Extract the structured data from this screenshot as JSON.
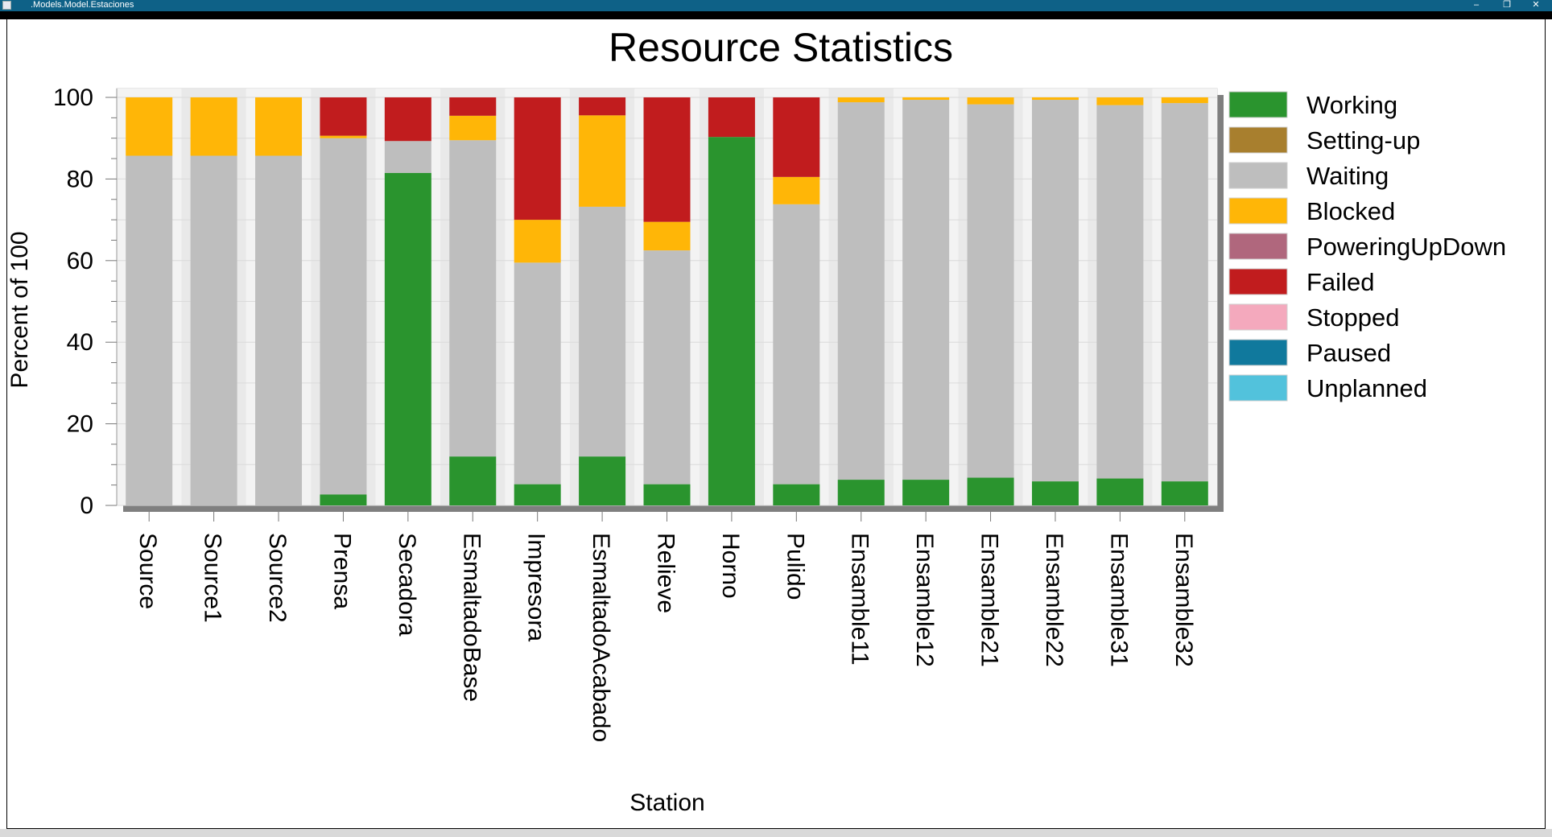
{
  "window": {
    "title": ".Models.Model.Estaciones",
    "minimize_icon": "minimize-icon",
    "restore_icon": "restore-icon",
    "close_icon": "close-icon"
  },
  "chart_data": {
    "type": "stacked-bar",
    "title": "Resource Statistics",
    "xlabel": "Station",
    "ylabel": "Percent of 100",
    "ylim": [
      0,
      100
    ],
    "yticks": [
      0,
      20,
      40,
      60,
      80,
      100
    ],
    "grid": true,
    "legend_position": "right",
    "categories": [
      "Source",
      "Source1",
      "Source2",
      "Prensa",
      "Secadora",
      "EsmaltadoBase",
      "Impresora",
      "EsmaltadoAcabado",
      "Relieve",
      "Horno",
      "Pulido",
      "Ensamble11",
      "Ensamble12",
      "Ensamble21",
      "Ensamble22",
      "Ensamble31",
      "Ensamble32"
    ],
    "series": [
      {
        "name": "Working",
        "color": "#2a942e",
        "values": [
          0,
          0,
          0,
          2.7,
          81.5,
          12,
          5.2,
          12,
          5.2,
          90.3,
          5.2,
          6.3,
          6.3,
          6.8,
          5.9,
          6.6,
          5.9
        ]
      },
      {
        "name": "Setting-up",
        "color": "#a87f2e",
        "values": [
          0,
          0,
          0,
          0,
          0,
          0,
          0,
          0,
          0,
          0,
          0,
          0,
          0,
          0,
          0,
          0,
          0
        ]
      },
      {
        "name": "Waiting",
        "color": "#bebebe",
        "values": [
          85.7,
          85.7,
          85.7,
          87.3,
          7.8,
          77.5,
          54.3,
          61.2,
          57.3,
          0,
          68.6,
          92.5,
          93.1,
          91.5,
          93.5,
          91.5,
          92.7
        ]
      },
      {
        "name": "Blocked",
        "color": "#ffb607",
        "values": [
          14.3,
          14.3,
          14.3,
          0.6,
          0,
          6.0,
          10.5,
          22.4,
          7.0,
          0,
          6.7,
          1.2,
          0.6,
          1.7,
          0.6,
          1.9,
          1.4
        ]
      },
      {
        "name": "PoweringUpDown",
        "color": "#b0677d",
        "values": [
          0,
          0,
          0,
          0,
          0,
          0,
          0,
          0,
          0,
          0,
          0,
          0,
          0,
          0,
          0,
          0,
          0
        ]
      },
      {
        "name": "Failed",
        "color": "#c11c1e",
        "values": [
          0,
          0,
          0,
          9.4,
          10.7,
          4.5,
          30,
          4.4,
          30.5,
          9.7,
          19.5,
          0,
          0,
          0,
          0,
          0,
          0
        ]
      },
      {
        "name": "Stopped",
        "color": "#f4a9bd",
        "values": [
          0,
          0,
          0,
          0,
          0,
          0,
          0,
          0,
          0,
          0,
          0,
          0,
          0,
          0,
          0,
          0,
          0
        ]
      },
      {
        "name": "Paused",
        "color": "#10799d",
        "values": [
          0,
          0,
          0,
          0,
          0,
          0,
          0,
          0,
          0,
          0,
          0,
          0,
          0,
          0,
          0,
          0,
          0
        ]
      },
      {
        "name": "Unplanned",
        "color": "#52c2dc",
        "values": [
          0,
          0,
          0,
          0,
          0,
          0,
          0,
          0,
          0,
          0,
          0,
          0,
          0,
          0,
          0,
          0,
          0
        ]
      }
    ]
  }
}
